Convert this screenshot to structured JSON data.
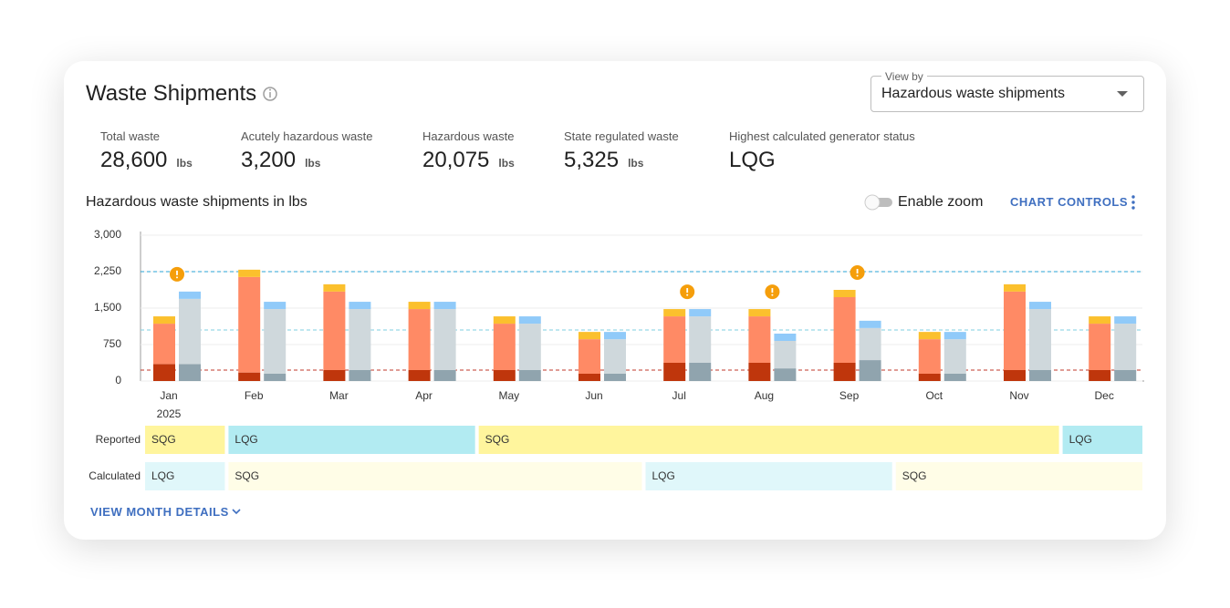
{
  "header": {
    "title": "Waste Shipments",
    "view_by": {
      "label": "View by",
      "value": "Hazardous waste shipments"
    }
  },
  "stats": [
    {
      "label": "Total waste",
      "value": "28,600",
      "unit": "lbs"
    },
    {
      "label": "Acutely hazardous waste",
      "value": "3,200",
      "unit": "lbs"
    },
    {
      "label": "Hazardous waste",
      "value": "20,075",
      "unit": "lbs"
    },
    {
      "label": "State regulated waste",
      "value": "5,325",
      "unit": "lbs"
    },
    {
      "label": "Highest calculated generator status",
      "value": "LQG"
    }
  ],
  "controls": {
    "zoom": "Enable zoom",
    "chart_controls": "CHART CONTROLS"
  },
  "chart_data": {
    "type": "stacked_bar",
    "title": "Hazardous waste shipments in lbs",
    "categories": [
      "Jan",
      "Feb",
      "Mar",
      "Apr",
      "May",
      "Jun",
      "Jul",
      "Aug",
      "Sep",
      "Oct",
      "Nov",
      "Dec"
    ],
    "year": "2025",
    "ylim": [
      0,
      3000
    ],
    "yticks": [
      0,
      {
        "value": 750,
        "label": "750"
      },
      {
        "value": 1500,
        "label": "1,500"
      },
      {
        "value": 2250,
        "label": "2,250"
      },
      {
        "value": 3000,
        "label": "3,000"
      }
    ],
    "grid": true,
    "stacks": [
      {
        "series": [
          {
            "color": "#bf360c",
            "values": [
              350,
              175,
              225,
              225,
              225,
              150,
              375,
              375,
              375,
              150,
              225,
              225
            ]
          },
          {
            "color": "#ff8a65",
            "values": [
              830,
              1965,
              1615,
              1255,
              955,
              710,
              955,
              955,
              1350,
              710,
              1615,
              955
            ]
          },
          {
            "color": "#fbc02d",
            "values": [
              150,
              150,
              150,
              150,
              150,
              150,
              150,
              150,
              150,
              150,
              150,
              150
            ]
          }
        ]
      },
      {
        "series": [
          {
            "color": "#90a4ae",
            "values": [
              350,
              150,
              225,
              225,
              225,
              150,
              375,
              260,
              430,
              150,
              225,
              225
            ]
          },
          {
            "color": "#cfd8dc",
            "values": [
              1340,
              1330,
              1255,
              1255,
              955,
              710,
              955,
              565,
              660,
              710,
              1255,
              955
            ]
          },
          {
            "color": "#90caf9",
            "values": [
              150,
              150,
              150,
              150,
              150,
              150,
              150,
              150,
              150,
              150,
              150,
              150
            ]
          }
        ]
      }
    ],
    "reference_lines": [
      {
        "value": 2250,
        "color": "#29a3d6"
      },
      {
        "value": 1050,
        "color": "#7fcfe0"
      },
      {
        "value": 225,
        "color": "#c0392b"
      }
    ],
    "alerts": [
      true,
      false,
      false,
      false,
      false,
      false,
      true,
      true,
      true,
      false,
      false,
      false
    ]
  },
  "status_rows": [
    {
      "label": "Reported",
      "segments": [
        {
          "label": "SQG",
          "months": 1,
          "color": "#fff59d",
          "text_color": "#f29900"
        },
        {
          "label": "LQG",
          "months": 3,
          "color": "#b2ebf2",
          "text_color": "#00606b"
        },
        {
          "label": "SQG",
          "months": 7,
          "color": "#fff59d",
          "text_color": "#f29900"
        },
        {
          "label": "LQG",
          "months": 1,
          "color": "#b2ebf2",
          "text_color": "#00606b"
        }
      ]
    },
    {
      "label": "Calculated",
      "segments": [
        {
          "label": "LQG",
          "months": 1,
          "color": "#e0f7fa",
          "text_color": "#00606b"
        },
        {
          "label": "SQG",
          "months": 5,
          "color": "#fffde7",
          "text_color": "#f29900"
        },
        {
          "label": "LQG",
          "months": 3,
          "color": "#e0f7fa",
          "text_color": "#00606b"
        },
        {
          "label": "SQG",
          "months": 3,
          "color": "#fffde7",
          "text_color": "#f29900"
        }
      ]
    }
  ],
  "footer": {
    "view_details": "VIEW MONTH DETAILS"
  }
}
